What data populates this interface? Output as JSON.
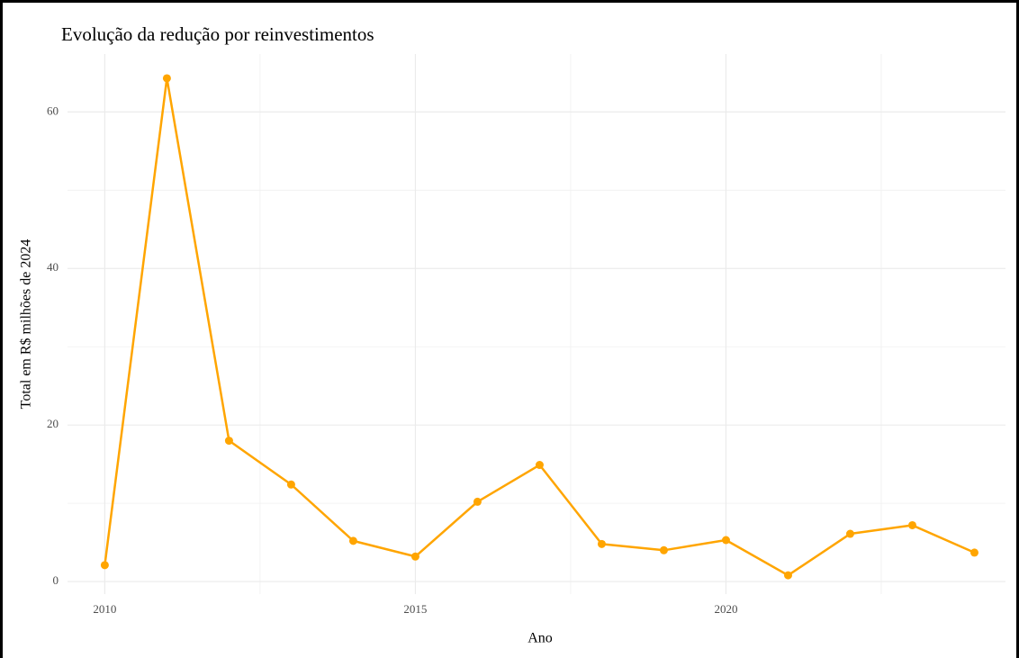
{
  "chart_data": {
    "type": "line",
    "title": "Evolução da redução por reinvestimentos",
    "xlabel": "Ano",
    "ylabel": "Total em R$ milhões de 2024",
    "x": [
      2010,
      2011,
      2012,
      2013,
      2014,
      2015,
      2016,
      2017,
      2018,
      2019,
      2020,
      2021,
      2022,
      2023,
      2024
    ],
    "series": [
      {
        "name": "Total",
        "color": "#FFA500",
        "values": [
          2.1,
          64.3,
          18.0,
          12.4,
          5.2,
          3.2,
          10.2,
          14.9,
          4.8,
          4.0,
          5.3,
          0.8,
          6.1,
          7.2,
          3.7
        ]
      }
    ],
    "xlim": [
      2009.4,
      2024.5
    ],
    "xticks": [
      2010,
      2015,
      2020
    ],
    "ylim": [
      -1.6,
      67.4
    ],
    "yticks": [
      0,
      20,
      40,
      60
    ],
    "grid": true
  }
}
